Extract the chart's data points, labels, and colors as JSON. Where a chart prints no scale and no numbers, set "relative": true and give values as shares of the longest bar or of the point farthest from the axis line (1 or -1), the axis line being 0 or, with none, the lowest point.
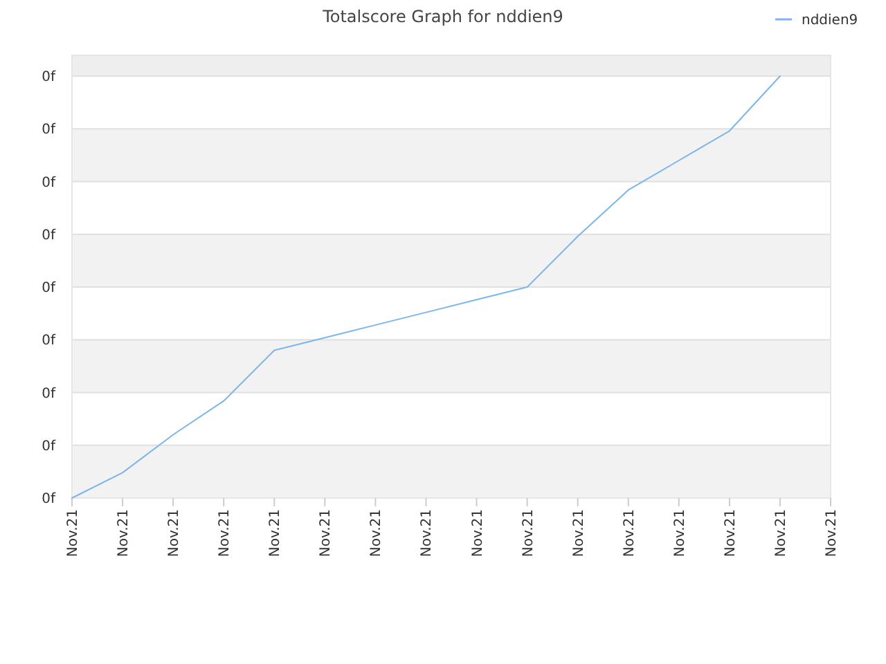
{
  "chart_data": {
    "type": "line",
    "title": "Totalscore Graph for nddien9",
    "relative": true,
    "categories": [
      "Nov.21",
      "Nov.21",
      "Nov.21",
      "Nov.21",
      "Nov.21",
      "Nov.21",
      "Nov.21",
      "Nov.21",
      "Nov.21",
      "Nov.21",
      "Nov.21",
      "Nov.21",
      "Nov.21",
      "Nov.21",
      "Nov.21",
      "Nov.21"
    ],
    "series": [
      {
        "name": "nddien9",
        "color": "#7cb5ec",
        "values": [
          0,
          0.06,
          0.15,
          0.23,
          0.35,
          0.38,
          0.41,
          0.44,
          0.47,
          0.5,
          0.62,
          0.73,
          0.8,
          0.87,
          1,
          null
        ]
      }
    ],
    "annotations": [
      "0f",
      "0f",
      "0f",
      "0f",
      "0f",
      "0f",
      "0f",
      "0f",
      "0f"
    ],
    "bands": [
      {
        "axis": "y",
        "from": 0,
        "to": 0.125,
        "color": "#f2f2f2"
      },
      {
        "axis": "y",
        "from": 0.25,
        "to": 0.375,
        "color": "#f2f2f2"
      },
      {
        "axis": "y",
        "from": 0.5,
        "to": 0.625,
        "color": "#f2f2f2"
      },
      {
        "axis": "y",
        "from": 0.75,
        "to": 0.875,
        "color": "#f2f2f2"
      }
    ],
    "grid": "y",
    "legend": "top right",
    "marker": "none",
    "line_style": "solid"
  }
}
